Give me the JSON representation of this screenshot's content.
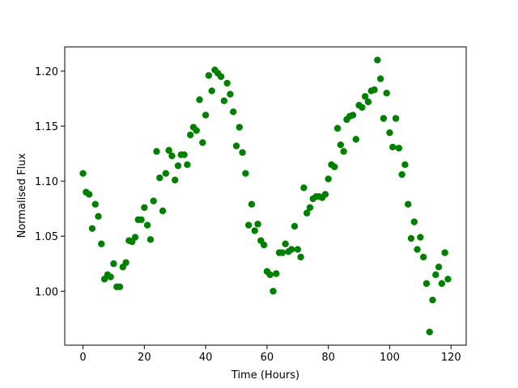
{
  "chart_data": {
    "type": "scatter",
    "xlabel": "Time (Hours)",
    "ylabel": "Normalised Flux",
    "color": "#008000",
    "x": [
      0,
      1,
      2,
      3,
      4,
      5,
      6,
      7,
      8,
      9,
      10,
      11,
      12,
      13,
      14,
      15,
      16,
      17,
      18,
      19,
      20,
      21,
      22,
      23,
      24,
      25,
      26,
      27,
      28,
      29,
      30,
      31,
      32,
      33,
      34,
      35,
      36,
      37,
      38,
      39,
      40,
      41,
      42,
      43,
      44,
      45,
      46,
      47,
      48,
      49,
      50,
      51,
      52,
      53,
      54,
      55,
      56,
      57,
      58,
      59,
      60,
      61,
      62,
      63,
      64,
      65,
      66,
      67,
      68,
      69,
      70,
      71,
      72,
      73,
      74,
      75,
      76,
      77,
      78,
      79,
      80,
      81,
      82,
      83,
      84,
      85,
      86,
      87,
      88,
      89,
      90,
      91,
      92,
      93,
      94,
      95,
      96,
      97,
      98,
      99,
      100,
      101,
      102,
      103,
      104,
      105,
      106,
      107,
      108,
      109,
      110,
      111,
      112,
      113,
      114,
      115,
      116,
      117,
      118,
      119
    ],
    "values": [
      1.107,
      1.09,
      1.088,
      1.057,
      1.079,
      1.068,
      1.043,
      1.011,
      1.015,
      1.013,
      1.025,
      1.004,
      1.004,
      1.022,
      1.026,
      1.046,
      1.045,
      1.049,
      1.065,
      1.065,
      1.076,
      1.06,
      1.047,
      1.082,
      1.127,
      1.103,
      1.073,
      1.107,
      1.128,
      1.123,
      1.101,
      1.114,
      1.124,
      1.124,
      1.115,
      1.142,
      1.149,
      1.146,
      1.174,
      1.135,
      1.16,
      1.196,
      1.182,
      1.201,
      1.198,
      1.195,
      1.173,
      1.189,
      1.179,
      1.163,
      1.132,
      1.149,
      1.126,
      1.107,
      1.06,
      1.079,
      1.055,
      1.061,
      1.046,
      1.042,
      1.018,
      1.015,
      1.0,
      1.016,
      1.035,
      1.035,
      1.043,
      1.036,
      1.038,
      1.059,
      1.038,
      1.031,
      1.094,
      1.071,
      1.076,
      1.084,
      1.086,
      1.086,
      1.085,
      1.088,
      1.102,
      1.115,
      1.113,
      1.148,
      1.133,
      1.127,
      1.156,
      1.159,
      1.16,
      1.138,
      1.169,
      1.167,
      1.177,
      1.172,
      1.182,
      1.183,
      1.21,
      1.193,
      1.157,
      1.18,
      1.144,
      1.131,
      1.157,
      1.13,
      1.106,
      1.115,
      1.079,
      1.048,
      1.063,
      1.038,
      1.049,
      1.031,
      1.007,
      0.963,
      0.992,
      1.015,
      1.022,
      1.007,
      1.035,
      1.011
    ],
    "xlim": [
      -5.95,
      124.95
    ],
    "xticks": [
      0,
      20,
      40,
      60,
      80,
      100,
      120
    ],
    "ylim": [
      0.951,
      1.222
    ],
    "yticks": [
      {
        "value": 1.0,
        "label": "1.00"
      },
      1.05,
      {
        "value": 1.1,
        "label": "1.10"
      },
      1.15,
      {
        "value": 1.2,
        "label": "1.20"
      }
    ]
  }
}
